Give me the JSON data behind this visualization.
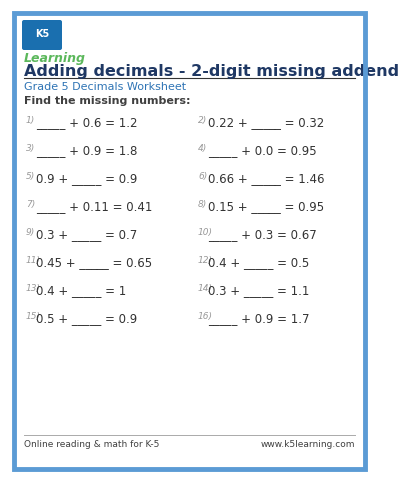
{
  "title": "Adding decimals - 2-digit missing addend",
  "subtitle": "Grade 5 Decimals Worksheet",
  "instruction": "Find the missing numbers:",
  "border_color": "#5b9bd5",
  "title_color": "#1f3864",
  "subtitle_color": "#2e74b5",
  "text_color": "#404040",
  "footer_left": "Online reading & math for K-5",
  "footer_right": "www.k5learning.com",
  "problems_left": [
    {
      "num": "1)",
      "eq": "_____ + 0.6 = 1.2"
    },
    {
      "num": "3)",
      "eq": "_____ + 0.9 = 1.8"
    },
    {
      "num": "5)",
      "eq": "0.9 + _____ = 0.9"
    },
    {
      "num": "7)",
      "eq": "_____ + 0.11 = 0.41"
    },
    {
      "num": "9)",
      "eq": "0.3 + _____ = 0.7"
    },
    {
      "num": "11)",
      "eq": "0.45 + _____ = 0.65"
    },
    {
      "num": "13)",
      "eq": "0.4 + _____ = 1"
    },
    {
      "num": "15)",
      "eq": "0.5 + _____ = 0.9"
    }
  ],
  "problems_right": [
    {
      "num": "2)",
      "eq": "0.22 + _____ = 0.32"
    },
    {
      "num": "4)",
      "eq": "_____ + 0.0 = 0.95"
    },
    {
      "num": "6)",
      "eq": "0.66 + _____ = 1.46"
    },
    {
      "num": "8)",
      "eq": "0.15 + _____ = 0.95"
    },
    {
      "num": "10)",
      "eq": "_____ + 0.3 = 0.67"
    },
    {
      "num": "12)",
      "eq": "0.4 + _____ = 0.5"
    },
    {
      "num": "14)",
      "eq": "0.3 + _____ = 1.1"
    },
    {
      "num": "16)",
      "eq": "_____ + 0.9 = 1.7"
    }
  ],
  "bg_color": "#ffffff",
  "num_color": "#999999",
  "problem_color": "#333333",
  "logo_box_color": "#1a6faf",
  "logo_text_color": "#5cb85c",
  "line_color": "#cccccc"
}
